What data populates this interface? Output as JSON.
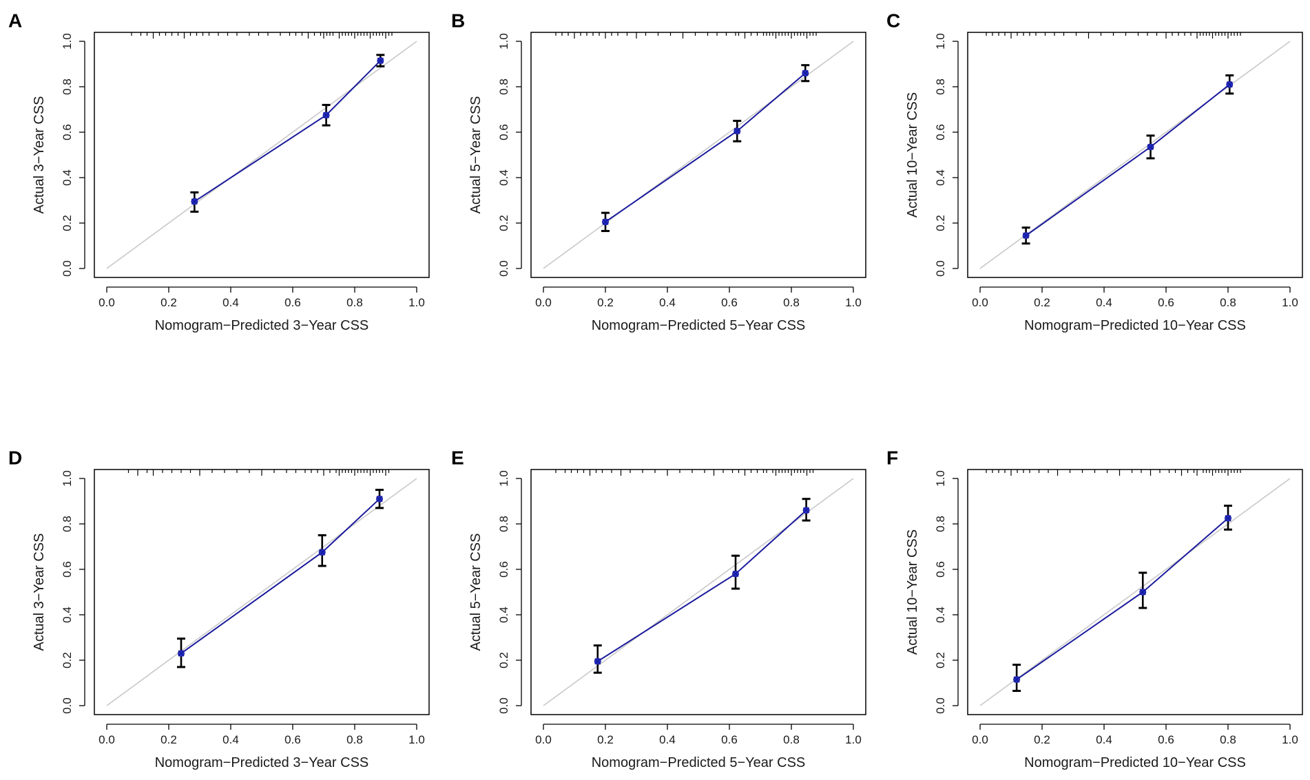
{
  "figure": {
    "colors": {
      "calibration_line": "#1a1a9c",
      "marker": "#2233cc",
      "ideal_line": "#c8c8c8",
      "error_bar": "#000000",
      "axis": "#000000"
    }
  },
  "chart_data": [
    {
      "panel": "A",
      "type": "line",
      "xlabel": "Nomogram−Predicted 3−Year CSS",
      "ylabel": "Actual 3−Year CSS",
      "xlim": [
        0,
        1
      ],
      "ylim": [
        0,
        1
      ],
      "xticks": [
        "0.0",
        "0.2",
        "0.4",
        "0.6",
        "0.8",
        "1.0"
      ],
      "yticks": [
        "0.0",
        "0.2",
        "0.4",
        "0.6",
        "0.8",
        "1.0"
      ],
      "points": [
        {
          "x": 0.283,
          "y": 0.295,
          "lo": 0.25,
          "hi": 0.335
        },
        {
          "x": 0.708,
          "y": 0.675,
          "lo": 0.63,
          "hi": 0.72
        },
        {
          "x": 0.883,
          "y": 0.915,
          "lo": 0.89,
          "hi": 0.94
        }
      ],
      "rug": [
        0.08,
        0.11,
        0.13,
        0.15,
        0.17,
        0.19,
        0.21,
        0.23,
        0.25,
        0.27,
        0.29,
        0.31,
        0.33,
        0.36,
        0.39,
        0.42,
        0.46,
        0.49,
        0.52,
        0.56,
        0.59,
        0.61,
        0.63,
        0.65,
        0.67,
        0.69,
        0.7,
        0.71,
        0.72,
        0.73,
        0.75,
        0.76,
        0.77,
        0.78,
        0.79,
        0.8,
        0.81,
        0.82,
        0.83,
        0.84,
        0.85,
        0.86,
        0.87,
        0.88,
        0.89,
        0.9,
        0.91,
        0.92
      ]
    },
    {
      "panel": "B",
      "type": "line",
      "xlabel": "Nomogram−Predicted 5−Year CSS",
      "ylabel": "Actual 5−Year CSS",
      "xlim": [
        0,
        1
      ],
      "ylim": [
        0,
        1
      ],
      "xticks": [
        "0.0",
        "0.2",
        "0.4",
        "0.6",
        "0.8",
        "1.0"
      ],
      "yticks": [
        "0.0",
        "0.2",
        "0.4",
        "0.6",
        "0.8",
        "1.0"
      ],
      "points": [
        {
          "x": 0.2,
          "y": 0.205,
          "lo": 0.165,
          "hi": 0.245
        },
        {
          "x": 0.625,
          "y": 0.605,
          "lo": 0.56,
          "hi": 0.65
        },
        {
          "x": 0.845,
          "y": 0.86,
          "lo": 0.825,
          "hi": 0.895
        }
      ],
      "rug": [
        0.04,
        0.06,
        0.08,
        0.1,
        0.12,
        0.14,
        0.16,
        0.18,
        0.2,
        0.22,
        0.24,
        0.27,
        0.3,
        0.33,
        0.37,
        0.41,
        0.45,
        0.49,
        0.53,
        0.56,
        0.59,
        0.62,
        0.63,
        0.65,
        0.67,
        0.69,
        0.71,
        0.72,
        0.73,
        0.74,
        0.75,
        0.76,
        0.77,
        0.78,
        0.79,
        0.8,
        0.81,
        0.82,
        0.83,
        0.84,
        0.85,
        0.86,
        0.87,
        0.88
      ]
    },
    {
      "panel": "C",
      "type": "line",
      "xlabel": "Nomogram−Predicted 10−Year CSS",
      "ylabel": "Actual 10−Year CSS",
      "xlim": [
        0,
        1
      ],
      "ylim": [
        0,
        1
      ],
      "xticks": [
        "0.0",
        "0.2",
        "0.4",
        "0.6",
        "0.8",
        "1.0"
      ],
      "yticks": [
        "0.0",
        "0.2",
        "0.4",
        "0.6",
        "0.8",
        "1.0"
      ],
      "points": [
        {
          "x": 0.148,
          "y": 0.145,
          "lo": 0.11,
          "hi": 0.18
        },
        {
          "x": 0.55,
          "y": 0.535,
          "lo": 0.485,
          "hi": 0.585
        },
        {
          "x": 0.805,
          "y": 0.81,
          "lo": 0.77,
          "hi": 0.85
        }
      ],
      "rug": [
        0.02,
        0.04,
        0.06,
        0.08,
        0.1,
        0.12,
        0.14,
        0.16,
        0.18,
        0.21,
        0.24,
        0.27,
        0.31,
        0.35,
        0.39,
        0.43,
        0.47,
        0.51,
        0.54,
        0.57,
        0.6,
        0.62,
        0.64,
        0.66,
        0.68,
        0.7,
        0.71,
        0.72,
        0.73,
        0.74,
        0.75,
        0.76,
        0.77,
        0.78,
        0.79,
        0.8,
        0.81,
        0.82,
        0.83,
        0.84
      ]
    },
    {
      "panel": "D",
      "type": "line",
      "xlabel": "Nomogram−Predicted 3−Year CSS",
      "ylabel": "Actual 3−Year CSS",
      "xlim": [
        0,
        1
      ],
      "ylim": [
        0,
        1
      ],
      "xticks": [
        "0.0",
        "0.2",
        "0.4",
        "0.6",
        "0.8",
        "1.0"
      ],
      "yticks": [
        "0.0",
        "0.2",
        "0.4",
        "0.6",
        "0.8",
        "1.0"
      ],
      "points": [
        {
          "x": 0.24,
          "y": 0.23,
          "lo": 0.17,
          "hi": 0.295
        },
        {
          "x": 0.695,
          "y": 0.675,
          "lo": 0.615,
          "hi": 0.75
        },
        {
          "x": 0.88,
          "y": 0.91,
          "lo": 0.87,
          "hi": 0.95
        }
      ],
      "rug": [
        0.07,
        0.1,
        0.13,
        0.15,
        0.18,
        0.21,
        0.24,
        0.27,
        0.3,
        0.34,
        0.38,
        0.42,
        0.46,
        0.5,
        0.54,
        0.58,
        0.61,
        0.64,
        0.66,
        0.68,
        0.7,
        0.72,
        0.74,
        0.75,
        0.76,
        0.77,
        0.78,
        0.79,
        0.8,
        0.81,
        0.82,
        0.83,
        0.84,
        0.85,
        0.86,
        0.87,
        0.88,
        0.89,
        0.9,
        0.91
      ]
    },
    {
      "panel": "E",
      "type": "line",
      "xlabel": "Nomogram−Predicted 5−Year CSS",
      "ylabel": "Actual 5−Year CSS",
      "xlim": [
        0,
        1
      ],
      "ylim": [
        0,
        1
      ],
      "xticks": [
        "0.0",
        "0.2",
        "0.4",
        "0.6",
        "0.8",
        "1.0"
      ],
      "yticks": [
        "0.0",
        "0.2",
        "0.4",
        "0.6",
        "0.8",
        "1.0"
      ],
      "points": [
        {
          "x": 0.175,
          "y": 0.195,
          "lo": 0.145,
          "hi": 0.265
        },
        {
          "x": 0.62,
          "y": 0.58,
          "lo": 0.515,
          "hi": 0.66
        },
        {
          "x": 0.848,
          "y": 0.86,
          "lo": 0.815,
          "hi": 0.91
        }
      ],
      "rug": [
        0.04,
        0.07,
        0.09,
        0.11,
        0.13,
        0.15,
        0.17,
        0.19,
        0.22,
        0.25,
        0.28,
        0.32,
        0.36,
        0.4,
        0.44,
        0.48,
        0.52,
        0.55,
        0.58,
        0.61,
        0.63,
        0.65,
        0.67,
        0.69,
        0.71,
        0.72,
        0.74,
        0.75,
        0.76,
        0.77,
        0.78,
        0.79,
        0.8,
        0.81,
        0.82,
        0.83,
        0.84,
        0.85,
        0.86,
        0.87
      ]
    },
    {
      "panel": "F",
      "type": "line",
      "xlabel": "Nomogram−Predicted 10−Year CSS",
      "ylabel": "Actual 10−Year CSS",
      "xlim": [
        0,
        1
      ],
      "ylim": [
        0,
        1
      ],
      "xticks": [
        "0.0",
        "0.2",
        "0.4",
        "0.6",
        "0.8",
        "1.0"
      ],
      "yticks": [
        "0.0",
        "0.2",
        "0.4",
        "0.6",
        "0.8",
        "1.0"
      ],
      "points": [
        {
          "x": 0.118,
          "y": 0.115,
          "lo": 0.065,
          "hi": 0.18
        },
        {
          "x": 0.525,
          "y": 0.5,
          "lo": 0.43,
          "hi": 0.585
        },
        {
          "x": 0.8,
          "y": 0.825,
          "lo": 0.775,
          "hi": 0.88
        }
      ],
      "rug": [
        0.02,
        0.04,
        0.06,
        0.08,
        0.1,
        0.12,
        0.14,
        0.16,
        0.19,
        0.22,
        0.25,
        0.29,
        0.33,
        0.37,
        0.41,
        0.45,
        0.49,
        0.52,
        0.55,
        0.58,
        0.61,
        0.63,
        0.65,
        0.67,
        0.69,
        0.7,
        0.72,
        0.73,
        0.74,
        0.75,
        0.76,
        0.77,
        0.78,
        0.79,
        0.8,
        0.81,
        0.82,
        0.83,
        0.84
      ]
    }
  ]
}
